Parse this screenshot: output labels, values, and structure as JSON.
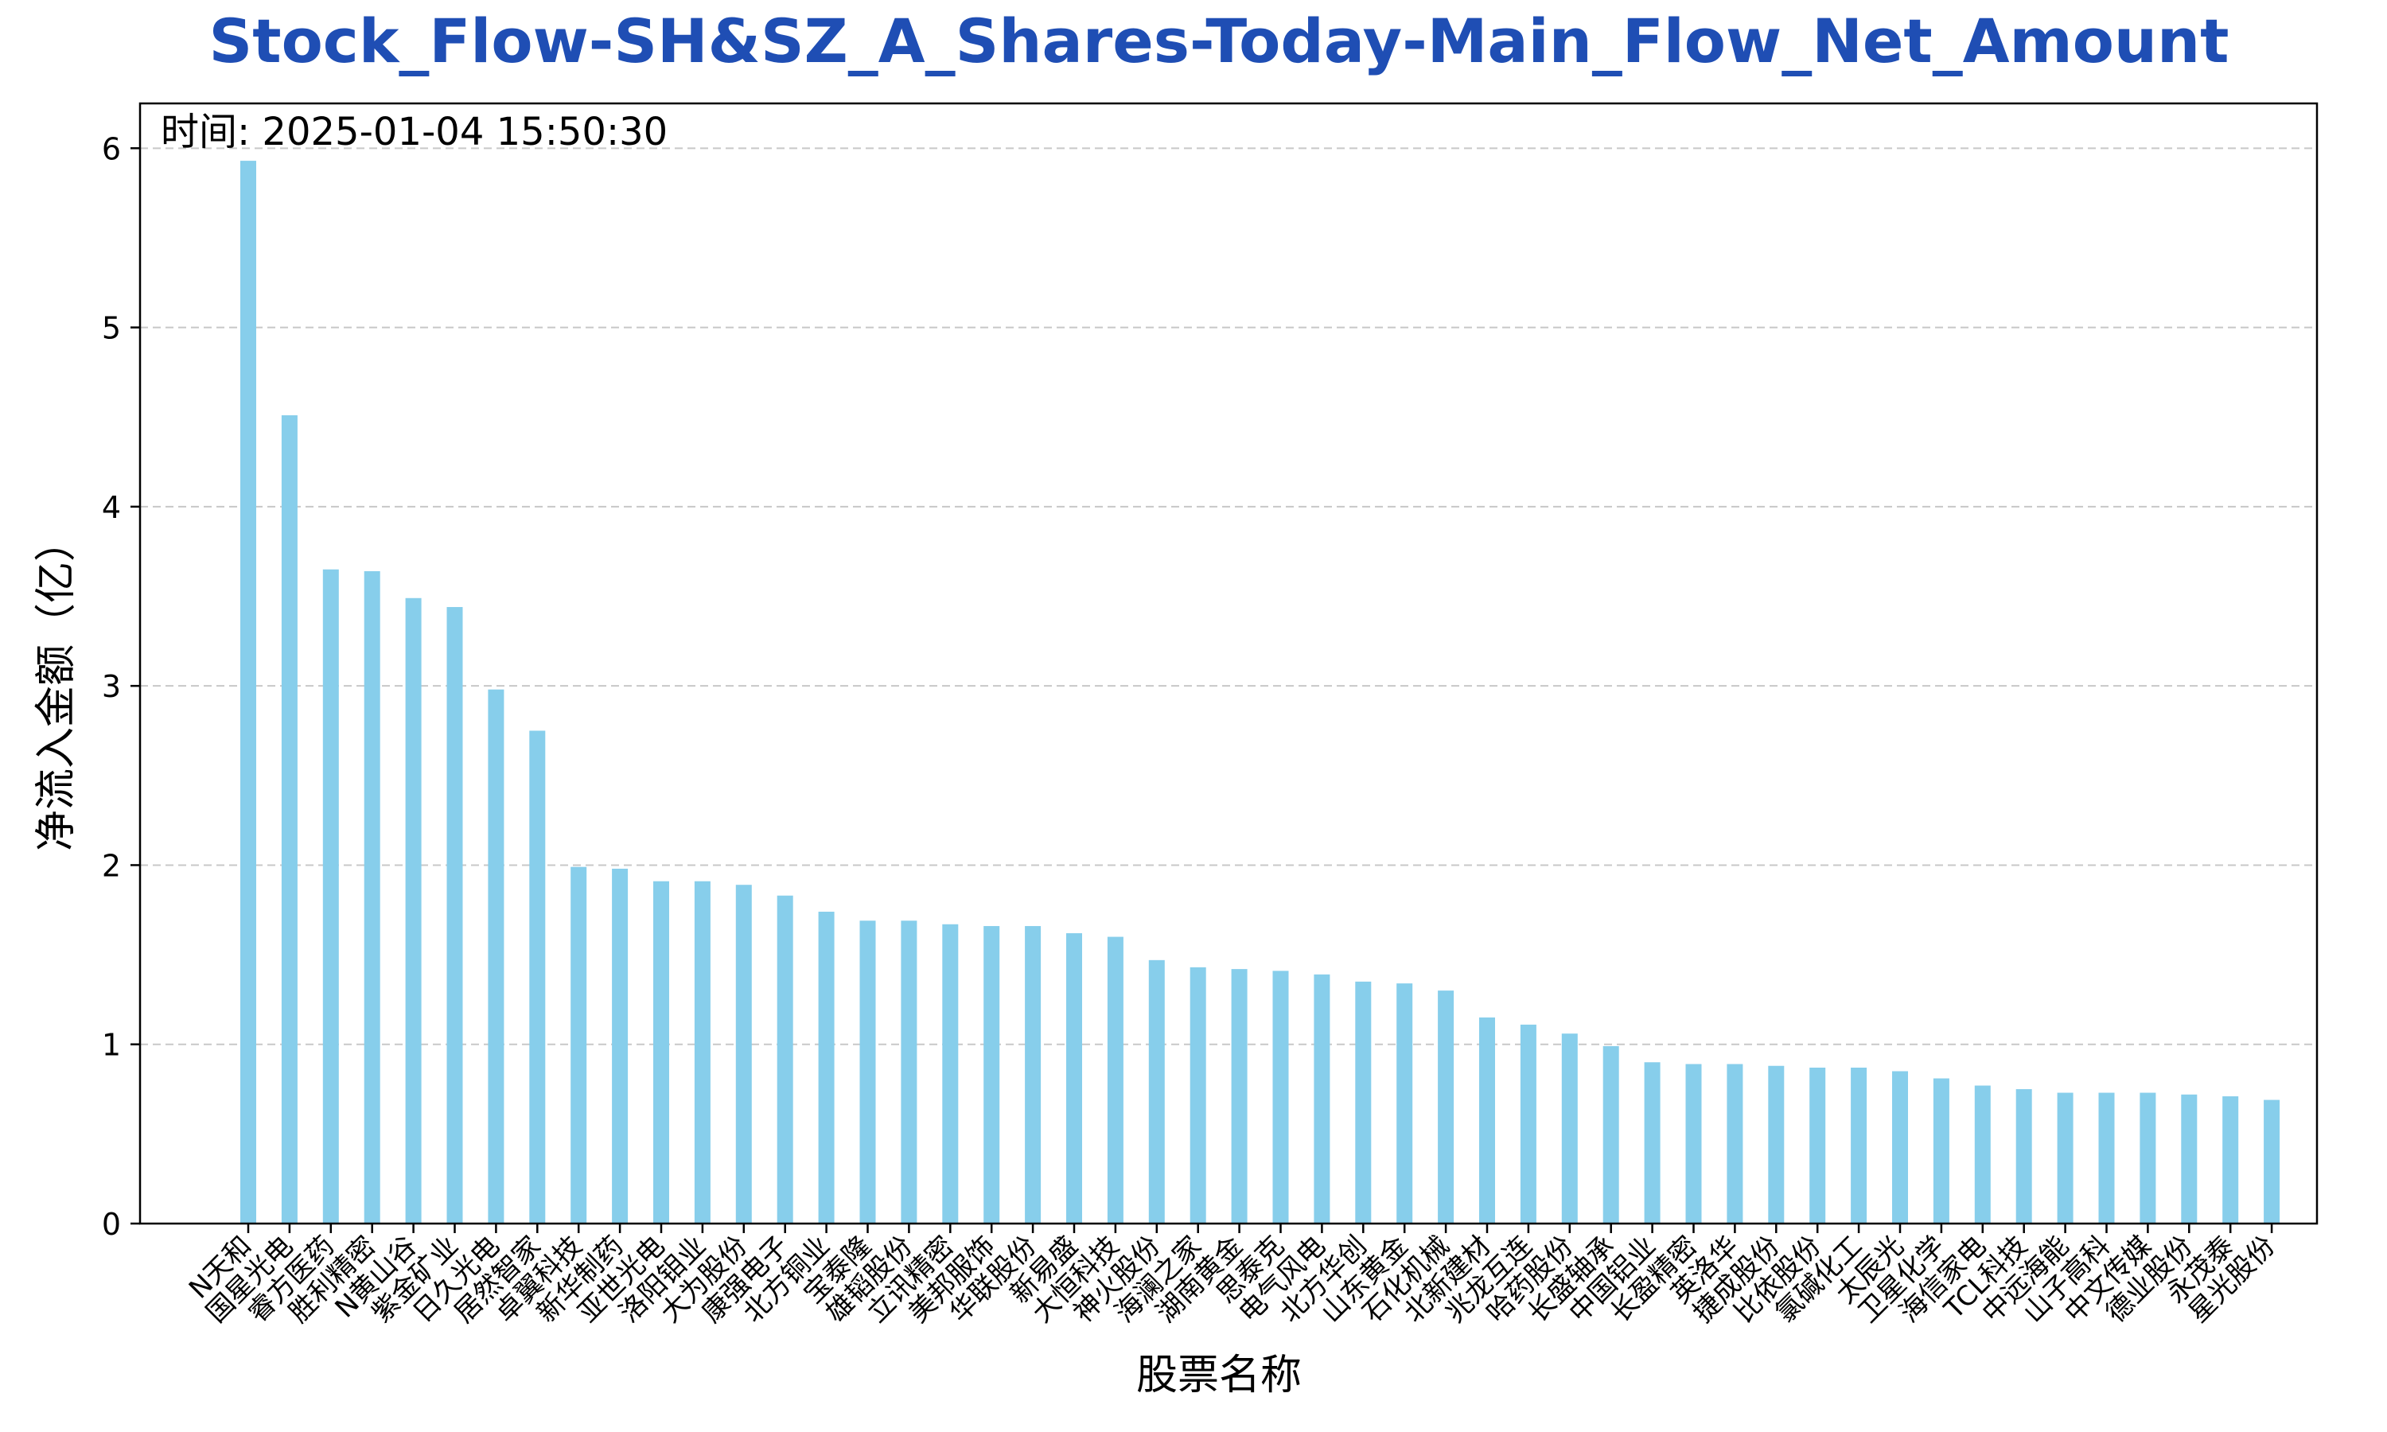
{
  "chart_data": {
    "type": "bar",
    "title": "Stock_Flow-SH&SZ_A_Shares-Today-Main_Flow_Net_Amount",
    "annotation": "时间: 2025-01-04 15:50:30",
    "xlabel": "股票名称",
    "ylabel": "净流入金额（亿）",
    "ylim": [
      0,
      6.25
    ],
    "yticks": [
      0,
      1,
      2,
      3,
      4,
      5,
      6
    ],
    "grid": "y-dashed",
    "colors": {
      "bar": "#87CEEB",
      "title": "#1f4eb4",
      "grid": "#c8c8c8",
      "axis": "#000000"
    },
    "categories": [
      "N天和",
      "国星光电",
      "睿方医药",
      "胜利精密",
      "N黄山谷",
      "紫金矿业",
      "日久光电",
      "居然智家",
      "卓翼科技",
      "新华制药",
      "亚世光电",
      "洛阳钼业",
      "大为股份",
      "康强电子",
      "北方铜业",
      "宝泰隆",
      "雄韬股份",
      "立讯精密",
      "美邦服饰",
      "华联股份",
      "新易盛",
      "大恒科技",
      "神火股份",
      "海澜之家",
      "湖南黄金",
      "思泰克",
      "电气风电",
      "北方华创",
      "山东黄金",
      "石化机械",
      "北新建材",
      "兆龙互连",
      "哈药股份",
      "长盛轴承",
      "中国铝业",
      "长盈精密",
      "英洛华",
      "捷成股份",
      "比依股份",
      "氯碱化工",
      "太辰光",
      "卫星化学",
      "海信家电",
      "TCL科技",
      "中远海能",
      "山子高科",
      "中文传媒",
      "德业股份",
      "永茂泰",
      "星光股份"
    ],
    "values": [
      5.93,
      4.51,
      3.65,
      3.64,
      3.49,
      3.44,
      2.98,
      2.75,
      1.99,
      1.98,
      1.91,
      1.91,
      1.89,
      1.83,
      1.74,
      1.69,
      1.69,
      1.67,
      1.66,
      1.66,
      1.62,
      1.6,
      1.47,
      1.43,
      1.42,
      1.41,
      1.39,
      1.35,
      1.34,
      1.3,
      1.15,
      1.11,
      1.06,
      0.99,
      0.9,
      0.89,
      0.89,
      0.88,
      0.87,
      0.87,
      0.85,
      0.81,
      0.77,
      0.75,
      0.73,
      0.73,
      0.73,
      0.72,
      0.71,
      0.69
    ]
  }
}
